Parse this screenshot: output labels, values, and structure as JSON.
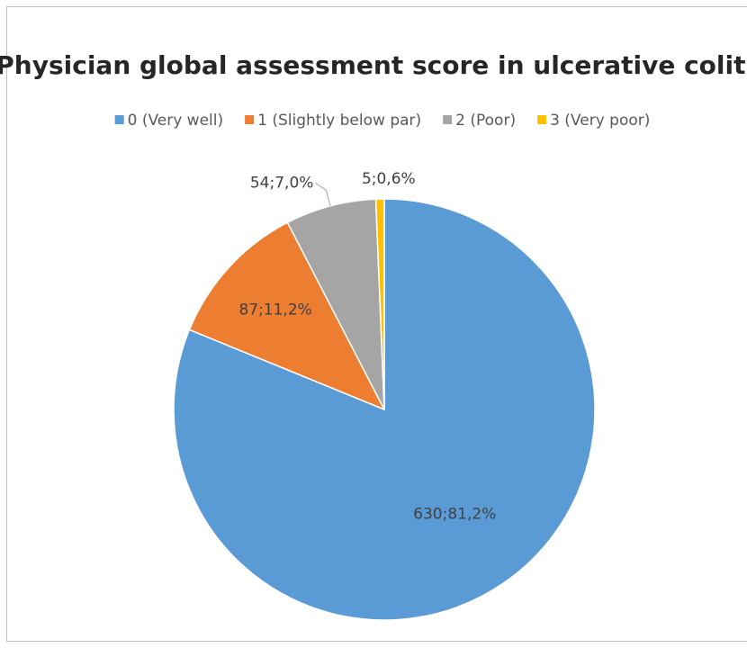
{
  "chart_data": {
    "type": "pie",
    "title": "Physician global assessment score in ulcerative colitis",
    "categories": [
      "0 (Very well)",
      "1 (Slightly below par)",
      "2 (Poor)",
      "3 (Very poor)"
    ],
    "values": [
      630,
      87,
      54,
      5
    ],
    "value_labels": [
      "630;81,2%",
      "87;11,2%",
      "54;7,0%",
      "5;0,6%"
    ],
    "colors": [
      "#5b9bd5",
      "#ed7d31",
      "#a5a5a5",
      "#ffc000"
    ],
    "legend": "top"
  }
}
